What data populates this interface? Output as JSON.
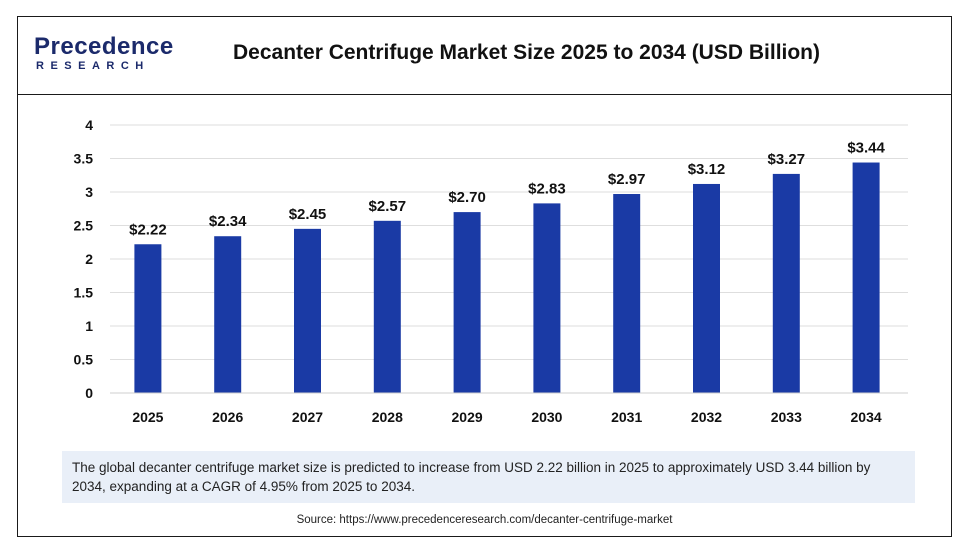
{
  "brand": {
    "logo_top": "Precedence",
    "logo_bottom": "RESEARCH"
  },
  "header": {
    "title": "Decanter Centrifuge Market Size 2025 to 2034 (USD Billion)"
  },
  "chart_data": {
    "type": "bar",
    "title": "Decanter Centrifuge Market Size 2025 to 2034 (USD Billion)",
    "categories": [
      "2025",
      "2026",
      "2027",
      "2028",
      "2029",
      "2030",
      "2031",
      "2032",
      "2033",
      "2034"
    ],
    "values": [
      2.22,
      2.34,
      2.45,
      2.57,
      2.7,
      2.83,
      2.97,
      3.12,
      3.27,
      3.44
    ],
    "data_labels": [
      "$2.22",
      "$2.34",
      "$2.45",
      "$2.57",
      "$2.70",
      "$2.83",
      "$2.97",
      "$3.12",
      "$3.27",
      "$3.44"
    ],
    "y_ticks": [
      "0",
      "0.5",
      "1",
      "1.5",
      "2",
      "2.5",
      "3",
      "3.5",
      "4"
    ],
    "ylim": [
      0,
      4
    ],
    "xlabel": "",
    "ylabel": "",
    "grid": true,
    "bar_color": "#1a3aa5"
  },
  "note": {
    "text": "The global decanter centrifuge market size is predicted to increase from USD 2.22 billion in 2025 to approximately USD 3.44 billion by 2034, expanding at a CAGR of 4.95% from 2025 to 2034."
  },
  "source": {
    "text": "Source: https://www.precedenceresearch.com/decanter-centrifuge-market"
  }
}
